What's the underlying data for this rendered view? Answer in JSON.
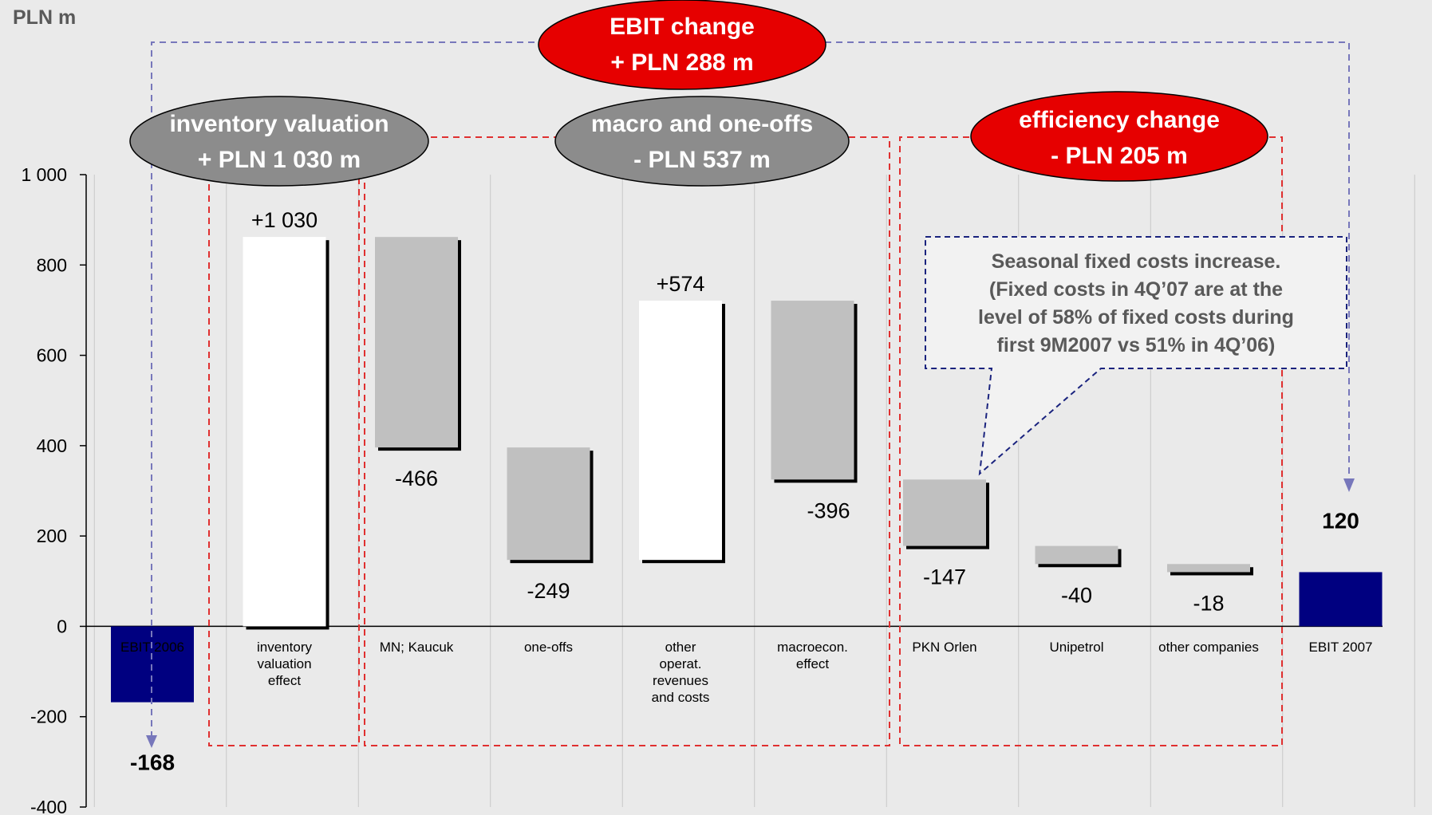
{
  "unit_label": "PLN m",
  "ellipses": {
    "ebit": {
      "line1": "EBIT change",
      "line2": "+ PLN 288 m",
      "color": "#e60000"
    },
    "inventory": {
      "line1": "inventory valuation",
      "line2": "+ PLN 1 030 m",
      "color": "#8c8c8c"
    },
    "macro": {
      "line1": "macro and one-offs",
      "line2": "- PLN 537 m",
      "color": "#8c8c8c"
    },
    "efficiency": {
      "line1": "efficiency change",
      "line2": "- PLN 205 m",
      "color": "#e60000"
    }
  },
  "callout": {
    "lines": [
      "Seasonal fixed costs increase.",
      "(Fixed costs in 4Q’07 are at the",
      "level of 58% of fixed costs during",
      "first 9M2007 vs 51%  in 4Q’06)"
    ]
  },
  "colors": {
    "plot_bg": "#eaeaea",
    "total_bar": "#000080",
    "neg_bar": "#c0c0c0",
    "pos_bar": "#ffffff",
    "dashed_red": "#e03030",
    "dashed_blue": "#7777bb",
    "callout_border": "#1a237e"
  },
  "chart_data": {
    "type": "bar",
    "subtype": "waterfall",
    "ylabel": "PLN m",
    "ylim": [
      -400,
      1000
    ],
    "yticks": [
      1000,
      800,
      600,
      400,
      200,
      0,
      -200,
      -400
    ],
    "ytick_labels": [
      "1 000",
      "800",
      "600",
      "400",
      "200",
      "0",
      "-200",
      "-400"
    ],
    "grid": "vertical",
    "bars": [
      {
        "category": [
          "EBIT 2006"
        ],
        "kind": "total",
        "low": -168,
        "high": 0,
        "label": "-168",
        "value": -168
      },
      {
        "category": [
          "inventory",
          "valuation",
          "effect"
        ],
        "kind": "increase",
        "low": 0,
        "high": 862,
        "label": "+1 030",
        "value": 1030
      },
      {
        "category": [
          "MN; Kaucuk"
        ],
        "kind": "decrease",
        "low": 396,
        "high": 862,
        "label": "-466",
        "value": -466
      },
      {
        "category": [
          "one-offs"
        ],
        "kind": "decrease",
        "low": 147,
        "high": 396,
        "label": "-249",
        "value": -249
      },
      {
        "category": [
          "other",
          "operat.",
          "revenues",
          "and costs"
        ],
        "kind": "increase",
        "low": 147,
        "high": 721,
        "label": "+574",
        "value": 574
      },
      {
        "category": [
          "macroecon.",
          "effect"
        ],
        "kind": "decrease",
        "low": 325,
        "high": 721,
        "label": "-396",
        "value": -396
      },
      {
        "category": [
          "PKN Orlen"
        ],
        "kind": "decrease",
        "low": 178,
        "high": 325,
        "label": "-147",
        "value": -147
      },
      {
        "category": [
          "Unipetrol"
        ],
        "kind": "decrease",
        "low": 138,
        "high": 178,
        "label": "-40",
        "value": -40
      },
      {
        "category": [
          "other companies"
        ],
        "kind": "decrease",
        "low": 120,
        "high": 138,
        "label": "-18",
        "value": -18
      },
      {
        "category": [
          "EBIT 2007"
        ],
        "kind": "total",
        "low": 0,
        "high": 120,
        "label": "120",
        "value": 120
      }
    ]
  }
}
